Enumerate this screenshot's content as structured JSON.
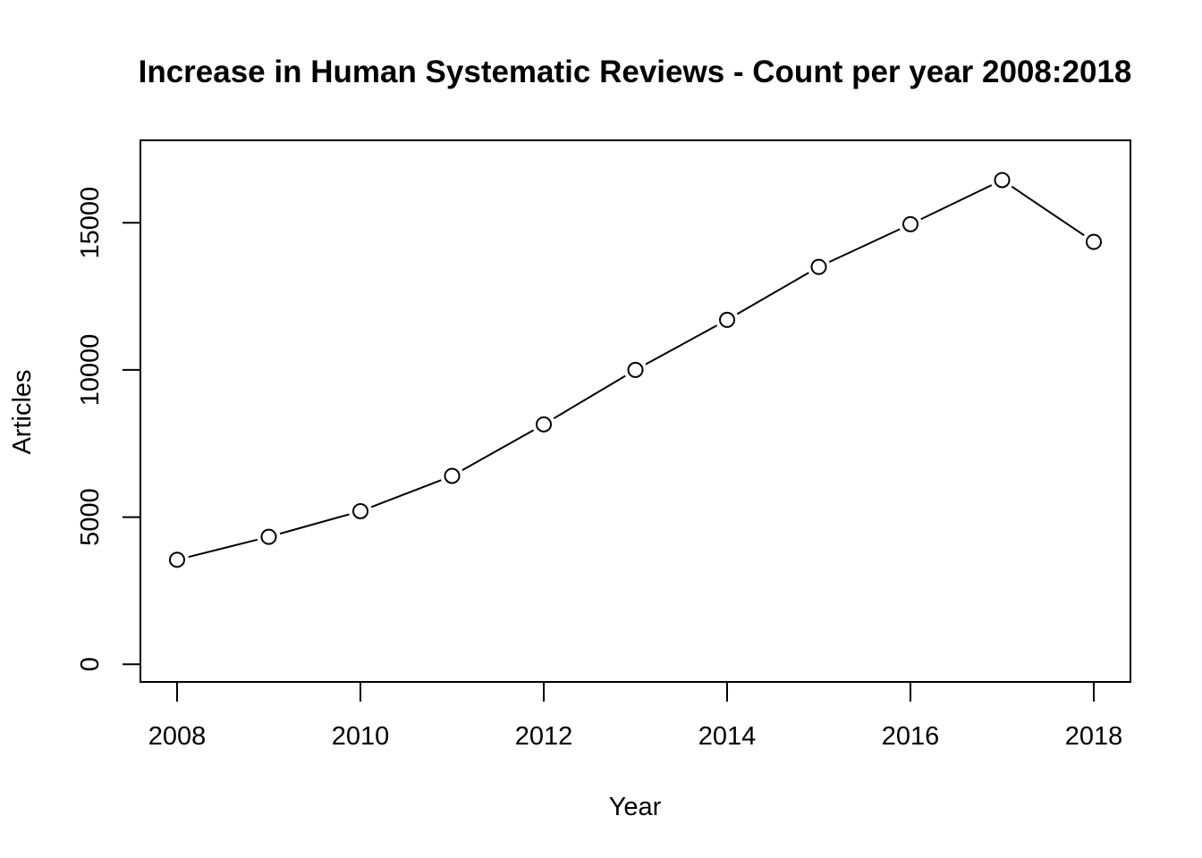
{
  "chart_data": {
    "type": "line",
    "title": "Increase in Human Systematic Reviews - Count per year 2008:2018",
    "xlabel": "Year",
    "ylabel": "Articles",
    "x": [
      2008,
      2009,
      2010,
      2011,
      2012,
      2013,
      2014,
      2015,
      2016,
      2017,
      2018
    ],
    "series": [
      {
        "values": [
          3550,
          4330,
          5200,
          6400,
          8150,
          10000,
          11700,
          13500,
          14950,
          16450,
          14350
        ]
      }
    ],
    "xlim": [
      2007.6,
      2018.4
    ],
    "ylim": [
      -600,
      17800
    ],
    "x_ticks": [
      2008,
      2010,
      2012,
      2014,
      2016,
      2018
    ],
    "y_ticks": [
      0,
      5000,
      10000,
      15000
    ],
    "x_tick_labels": [
      "2008",
      "2010",
      "2012",
      "2014",
      "2016",
      "2018"
    ],
    "y_tick_labels": [
      "0",
      "5000",
      "10000",
      "15000"
    ],
    "marker": "open-circle",
    "grid": false,
    "legend": "none",
    "colors": {
      "line": "#000000",
      "marker_fill": "#ffffff",
      "background": "#ffffff"
    }
  }
}
